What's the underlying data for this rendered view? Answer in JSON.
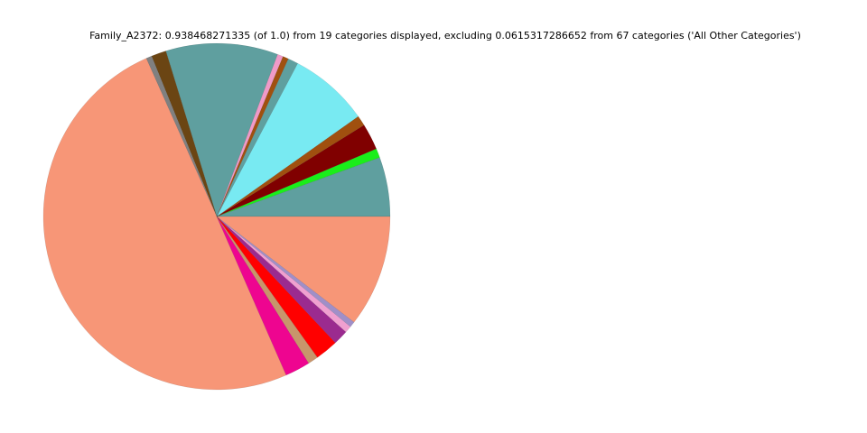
{
  "chart_data": {
    "type": "pie",
    "title": "Family_A2372: 0.938468271335 (of 1.0) from 19 categories displayed, excluding 0.0615317286652 from 67 categories ('All Other Categories')",
    "values": [
      0.052,
      0.008,
      0.023,
      0.009,
      0.07,
      0.009,
      0.005,
      0.005,
      0.098,
      0.013,
      0.005,
      0.468,
      0.022,
      0.009,
      0.02,
      0.013,
      0.006,
      0.005,
      0.098
    ],
    "colors": [
      "#5f9f9f",
      "#1aee1a",
      "#800000",
      "#a0500f",
      "#78eaf2",
      "#5f9f9f",
      "#a0500f",
      "#f09ac8",
      "#5f9f9f",
      "#6b4513",
      "#808080",
      "#f79677",
      "#ee0590",
      "#c8956b",
      "#ff0000",
      "#9b2b8f",
      "#f0a0d0",
      "#a08fc8",
      "#f79677"
    ]
  }
}
